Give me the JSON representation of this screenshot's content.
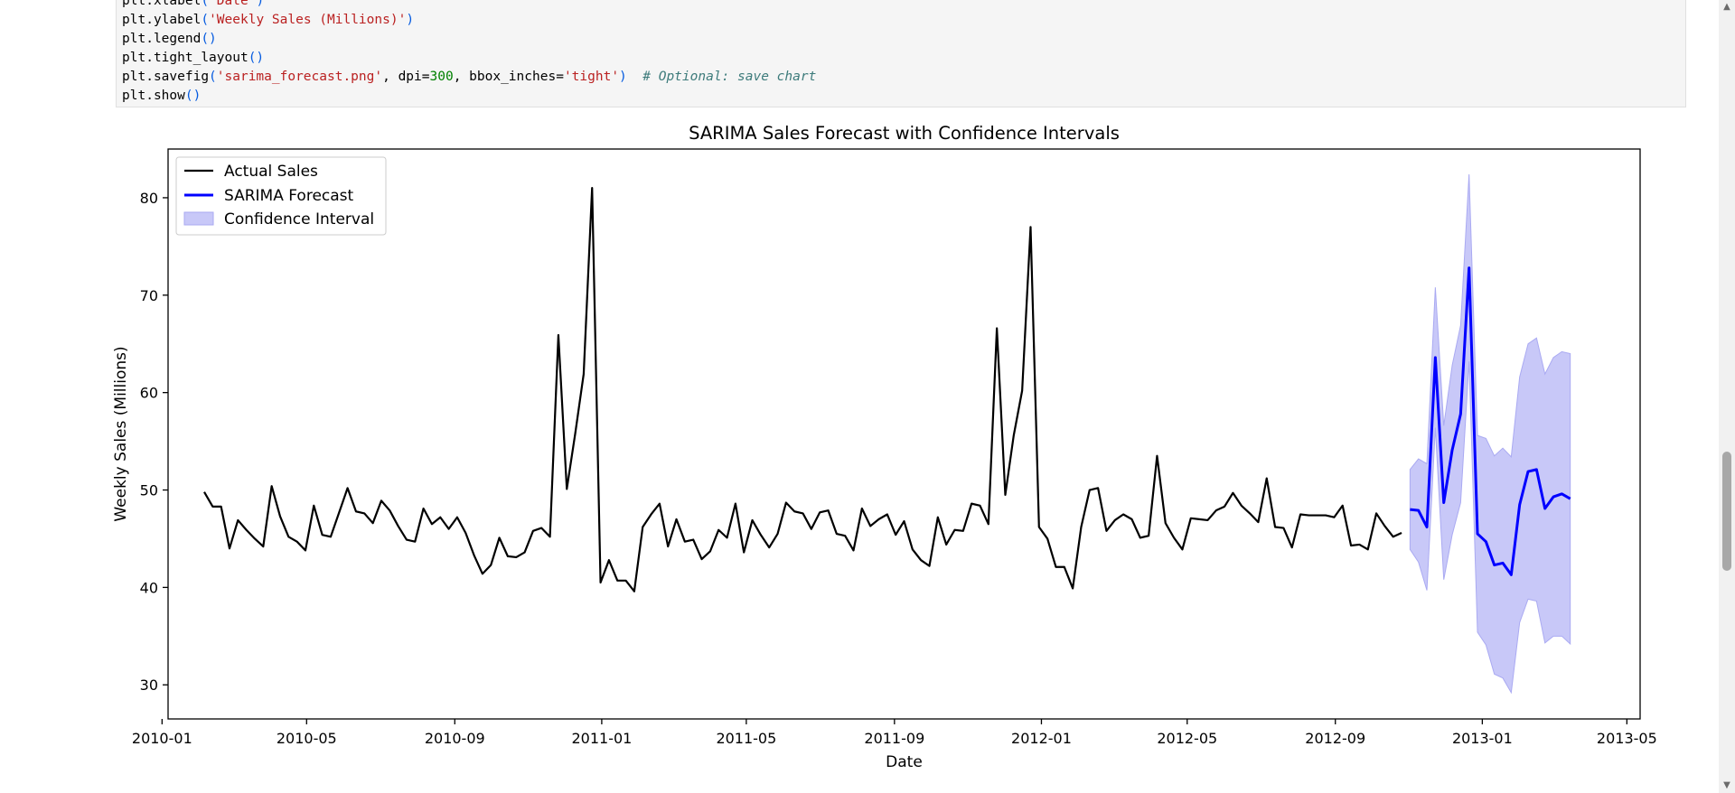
{
  "code": {
    "lines": [
      [
        {
          "c": "t-var",
          "t": "plt"
        },
        {
          "c": "t-k",
          "t": "."
        },
        {
          "c": "t-var",
          "t": "xlabel"
        },
        {
          "c": "t-p",
          "t": "("
        },
        {
          "c": "t-s",
          "t": "'Date'"
        },
        {
          "c": "t-p",
          "t": ")"
        }
      ],
      [
        {
          "c": "t-var",
          "t": "plt"
        },
        {
          "c": "t-k",
          "t": "."
        },
        {
          "c": "t-var",
          "t": "ylabel"
        },
        {
          "c": "t-p",
          "t": "("
        },
        {
          "c": "t-s",
          "t": "'Weekly Sales (Millions)'"
        },
        {
          "c": "t-p",
          "t": ")"
        }
      ],
      [
        {
          "c": "t-var",
          "t": "plt"
        },
        {
          "c": "t-k",
          "t": "."
        },
        {
          "c": "t-var",
          "t": "legend"
        },
        {
          "c": "t-p",
          "t": "()"
        }
      ],
      [
        {
          "c": "t-var",
          "t": "plt"
        },
        {
          "c": "t-k",
          "t": "."
        },
        {
          "c": "t-var",
          "t": "tight_layout"
        },
        {
          "c": "t-p",
          "t": "()"
        }
      ],
      [
        {
          "c": "t-var",
          "t": "plt"
        },
        {
          "c": "t-k",
          "t": "."
        },
        {
          "c": "t-var",
          "t": "savefig"
        },
        {
          "c": "t-p",
          "t": "("
        },
        {
          "c": "t-s",
          "t": "'sarima_forecast.png'"
        },
        {
          "c": "t-k",
          "t": ", dpi"
        },
        {
          "c": "t-k",
          "t": "="
        },
        {
          "c": "t-num",
          "t": "300"
        },
        {
          "c": "t-k",
          "t": ", bbox_inches"
        },
        {
          "c": "t-k",
          "t": "="
        },
        {
          "c": "t-s",
          "t": "'tight'"
        },
        {
          "c": "t-p",
          "t": ")"
        },
        {
          "c": "t-k",
          "t": "  "
        },
        {
          "c": "t-c",
          "t": "# Optional: save chart"
        }
      ],
      [
        {
          "c": "t-var",
          "t": "plt"
        },
        {
          "c": "t-k",
          "t": "."
        },
        {
          "c": "t-var",
          "t": "show"
        },
        {
          "c": "t-p",
          "t": "()"
        }
      ]
    ]
  },
  "scrollbar": {
    "up_icon": "▲",
    "down_icon": "▼"
  },
  "chart_data": {
    "type": "line",
    "title": "SARIMA Sales Forecast with Confidence Intervals",
    "xlabel": "Date",
    "ylabel": "Weekly Sales (Millions)",
    "x_axis_type": "date",
    "xlim": [
      "2010-01-06",
      "2013-05-12"
    ],
    "ylim": [
      26.5,
      85.0
    ],
    "x_ticks": [
      "2010-01",
      "2010-05",
      "2010-09",
      "2011-01",
      "2011-05",
      "2011-09",
      "2012-01",
      "2012-05",
      "2012-09",
      "2013-01",
      "2013-05"
    ],
    "y_ticks": [
      30,
      40,
      50,
      60,
      70,
      80
    ],
    "grid": false,
    "legend": {
      "placement": "top-left",
      "entries": [
        "Actual Sales",
        "SARIMA Forecast",
        "Confidence Interval"
      ]
    },
    "colors": {
      "actual": "#000000",
      "forecast": "#0000ff",
      "ci_fill": "#c8c8f8",
      "ci_edge": "#aaaaf2"
    },
    "series": [
      {
        "name": "Actual Sales",
        "start": "2010-02-05",
        "step_days": 7,
        "values": [
          49.8,
          48.3,
          48.3,
          44.0,
          46.9,
          45.9,
          45.0,
          44.2,
          50.4,
          47.3,
          45.2,
          44.7,
          43.8,
          48.4,
          45.4,
          45.2,
          47.7,
          50.2,
          47.8,
          47.6,
          46.6,
          48.9,
          47.9,
          46.3,
          44.9,
          44.7,
          48.1,
          46.5,
          47.2,
          46.0,
          47.2,
          45.6,
          43.3,
          41.4,
          42.3,
          45.1,
          43.2,
          43.1,
          43.6,
          45.8,
          46.1,
          45.2,
          65.9,
          50.1,
          55.8,
          61.9,
          81.0,
          40.5,
          42.8,
          40.7,
          40.7,
          39.6,
          46.2,
          47.5,
          48.6,
          44.2,
          47.0,
          44.7,
          44.9,
          42.9,
          43.7,
          45.9,
          45.1,
          48.6,
          43.6,
          46.9,
          45.4,
          44.1,
          45.5,
          48.7,
          47.8,
          47.6,
          46.0,
          47.7,
          47.9,
          45.5,
          45.3,
          43.8,
          48.1,
          46.3,
          47.0,
          47.5,
          45.4,
          46.8,
          43.9,
          42.8,
          42.2,
          47.2,
          44.4,
          45.9,
          45.8,
          48.6,
          48.4,
          46.5,
          66.6,
          49.5,
          55.6,
          60.2,
          77.0,
          46.2,
          45.0,
          42.1,
          42.1,
          39.9,
          46.2,
          50.0,
          50.2,
          45.8,
          46.9,
          47.5,
          47.0,
          45.1,
          45.3,
          53.5,
          46.6,
          45.1,
          43.9,
          47.1,
          47.0,
          46.9,
          47.9,
          48.3,
          49.7,
          48.4,
          47.6,
          46.7,
          51.2,
          46.2,
          46.1,
          44.1,
          47.5,
          47.4,
          47.4,
          47.4,
          47.2,
          48.4,
          44.3,
          44.4,
          43.9,
          47.6,
          46.3,
          45.2,
          45.6
        ]
      },
      {
        "name": "SARIMA Forecast",
        "start": "2012-11-02",
        "step_days": 7,
        "values": [
          48.0,
          47.9,
          46.2,
          63.6,
          48.7,
          54.1,
          57.8,
          72.8,
          45.5,
          44.7,
          42.3,
          42.5,
          41.3,
          48.5,
          51.9,
          52.1,
          48.1,
          49.3,
          49.6,
          49.1
        ],
        "ci_lower": [
          43.9,
          42.6,
          39.7,
          56.4,
          40.8,
          45.4,
          48.7,
          63.2,
          35.4,
          34.1,
          31.1,
          30.7,
          29.2,
          36.4,
          38.8,
          38.6,
          34.3,
          35.0,
          35.0,
          34.2
        ],
        "ci_upper": [
          52.1,
          53.2,
          52.7,
          70.8,
          56.6,
          62.8,
          66.9,
          82.4,
          55.6,
          55.3,
          53.5,
          54.3,
          53.4,
          61.6,
          65.0,
          65.6,
          61.9,
          63.6,
          64.2,
          64.0
        ]
      }
    ]
  }
}
